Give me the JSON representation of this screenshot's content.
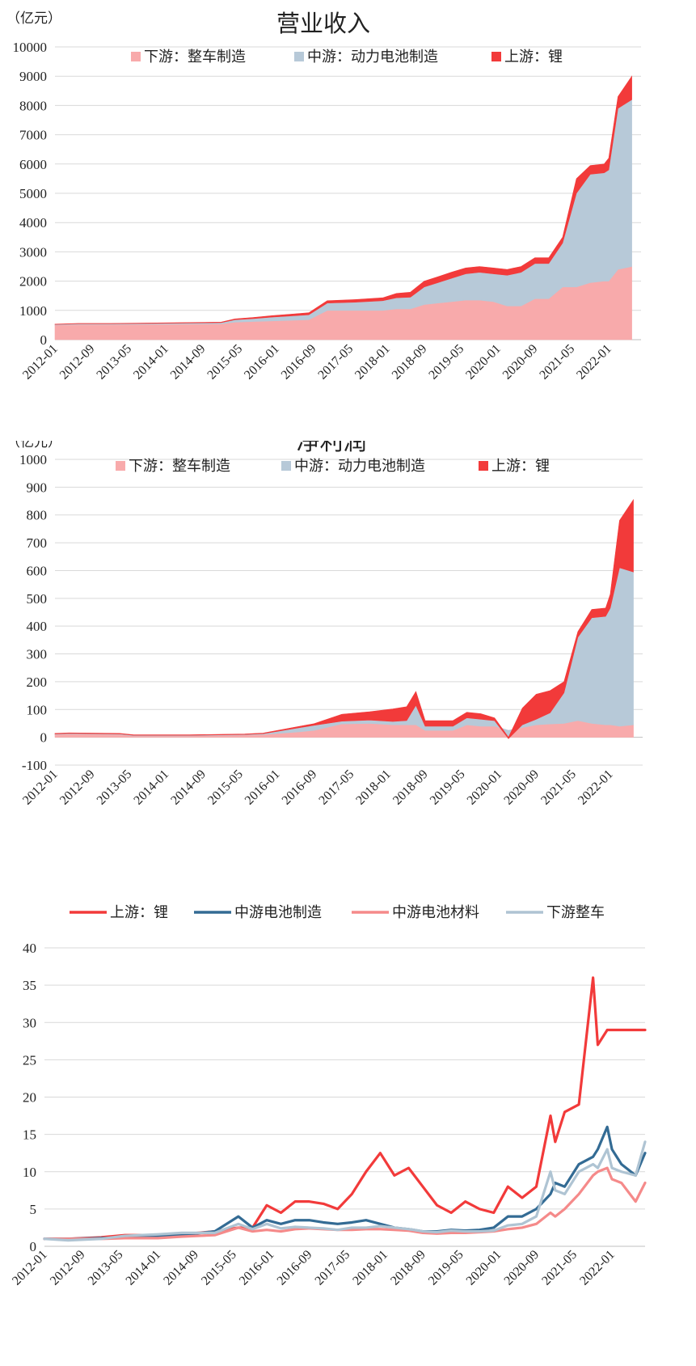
{
  "chart_data": [
    {
      "type": "area",
      "title": "营业收入",
      "unit": "（亿元）",
      "ylim": [
        0,
        10000
      ],
      "yticks": [
        0,
        1000,
        2000,
        3000,
        4000,
        5000,
        6000,
        7000,
        8000,
        9000,
        10000
      ],
      "xticks": [
        "2012-01",
        "2012-09",
        "2013-05",
        "2014-01",
        "2014-09",
        "2015-05",
        "2016-01",
        "2016-09",
        "2017-05",
        "2018-01",
        "2018-09",
        "2019-05",
        "2020-01",
        "2020-09",
        "2021-05",
        "2022-01"
      ],
      "stacked": true,
      "grid": true,
      "legend_position": "top",
      "x": [
        "2012-01",
        "2012-06",
        "2013-01",
        "2014-01",
        "2015-01",
        "2015-04",
        "2015-08",
        "2015-12",
        "2016-04",
        "2016-08",
        "2016-12",
        "2017-06",
        "2017-12",
        "2018-03",
        "2018-06",
        "2018-09",
        "2018-12",
        "2019-03",
        "2019-06",
        "2019-09",
        "2019-12",
        "2020-03",
        "2020-06",
        "2020-09",
        "2020-12",
        "2021-03",
        "2021-06",
        "2021-09",
        "2021-12",
        "2022-01",
        "2022-03",
        "2022-06"
      ],
      "series": [
        {
          "name": "下游：整车制造",
          "color": "#f8aaab",
          "values": [
            500,
            520,
            520,
            530,
            540,
            600,
            620,
            640,
            660,
            680,
            1000,
            1000,
            1000,
            1050,
            1050,
            1200,
            1250,
            1300,
            1350,
            1350,
            1300,
            1150,
            1150,
            1400,
            1400,
            1800,
            1800,
            1950,
            2000,
            2000,
            2400,
            2500
          ]
        },
        {
          "name": "中游：动力电池制造",
          "color": "#b7c9d8",
          "values": [
            20,
            25,
            25,
            30,
            40,
            80,
            100,
            130,
            150,
            170,
            250,
            280,
            330,
            380,
            400,
            600,
            700,
            800,
            900,
            950,
            950,
            1050,
            1150,
            1200,
            1200,
            1500,
            3200,
            3700,
            3700,
            3800,
            5500,
            5700
          ]
        },
        {
          "name": "上游：锂",
          "color": "#f23a3a",
          "values": [
            10,
            10,
            10,
            15,
            20,
            30,
            40,
            50,
            60,
            70,
            80,
            90,
            100,
            150,
            170,
            200,
            200,
            210,
            200,
            200,
            200,
            200,
            200,
            200,
            200,
            200,
            500,
            300,
            300,
            400,
            400,
            800
          ]
        }
      ]
    },
    {
      "type": "area",
      "title": "净利润",
      "unit": "（亿元）",
      "ylim": [
        -100,
        1000
      ],
      "yticks": [
        -100,
        0,
        100,
        200,
        300,
        400,
        500,
        600,
        700,
        800,
        900,
        1000
      ],
      "xticks": [
        "2012-01",
        "2012-09",
        "2013-05",
        "2014-01",
        "2014-09",
        "2015-05",
        "2016-01",
        "2016-09",
        "2017-05",
        "2018-01",
        "2018-09",
        "2019-05",
        "2020-01",
        "2020-09",
        "2021-05",
        "2022-01"
      ],
      "stacked": true,
      "grid": true,
      "legend_position": "top",
      "x": [
        "2012-01",
        "2012-04",
        "2013-03",
        "2013-06",
        "2014-06",
        "2015-06",
        "2015-10",
        "2016-06",
        "2016-09",
        "2017-03",
        "2017-09",
        "2018-02",
        "2018-05",
        "2018-07",
        "2018-09",
        "2019-03",
        "2019-06",
        "2019-09",
        "2019-12",
        "2020-03",
        "2020-06",
        "2020-09",
        "2020-12",
        "2021-03",
        "2021-06",
        "2021-09",
        "2021-12",
        "2022-01",
        "2022-03",
        "2022-06"
      ],
      "series": [
        {
          "name": "下游：整车制造",
          "color": "#f8aaab",
          "values": [
            10,
            12,
            10,
            5,
            5,
            8,
            10,
            20,
            25,
            48,
            50,
            45,
            45,
            45,
            25,
            25,
            45,
            40,
            40,
            25,
            35,
            45,
            48,
            50,
            60,
            50,
            45,
            45,
            40,
            45
          ]
        },
        {
          "name": "中游：动力电池制造",
          "color": "#b7c9d8",
          "values": [
            2,
            2,
            2,
            2,
            2,
            2,
            3,
            15,
            18,
            10,
            12,
            12,
            15,
            70,
            15,
            15,
            25,
            25,
            20,
            -30,
            10,
            20,
            40,
            110,
            300,
            380,
            390,
            420,
            570,
            550
          ]
        },
        {
          "name": "上游：锂",
          "color": "#f23a3a",
          "values": [
            2,
            2,
            2,
            2,
            2,
            2,
            2,
            5,
            6,
            25,
            30,
            45,
            50,
            50,
            20,
            20,
            20,
            20,
            10,
            5,
            60,
            90,
            80,
            40,
            20,
            30,
            30,
            50,
            170,
            260
          ]
        }
      ]
    },
    {
      "type": "line",
      "title": "",
      "ylim": [
        0,
        40
      ],
      "yticks": [
        0,
        5,
        10,
        15,
        20,
        25,
        30,
        35,
        40
      ],
      "xticks": [
        "2012-01",
        "2012-09",
        "2013-05",
        "2014-01",
        "2014-09",
        "2015-05",
        "2016-01",
        "2016-09",
        "2017-05",
        "2018-01",
        "2018-09",
        "2019-05",
        "2020-01",
        "2020-09",
        "2021-05",
        "2022-01"
      ],
      "grid": true,
      "legend_position": "top",
      "x": [
        "2012-01",
        "2012-06",
        "2013-01",
        "2013-06",
        "2014-01",
        "2014-06",
        "2015-01",
        "2015-06",
        "2015-09",
        "2015-12",
        "2016-03",
        "2016-06",
        "2016-09",
        "2016-12",
        "2017-03",
        "2017-06",
        "2017-09",
        "2017-12",
        "2018-03",
        "2018-06",
        "2018-09",
        "2018-12",
        "2019-03",
        "2019-06",
        "2019-09",
        "2019-12",
        "2020-03",
        "2020-06",
        "2020-09",
        "2020-12",
        "2021-01",
        "2021-03",
        "2021-06",
        "2021-09",
        "2021-10",
        "2021-12",
        "2022-01",
        "2022-03",
        "2022-06",
        "2022-08"
      ],
      "series": [
        {
          "name": "上游：锂",
          "color": "#f23a3a",
          "values": [
            1.0,
            1.0,
            1.2,
            1.5,
            1.5,
            1.6,
            2.0,
            2.5,
            2.5,
            5.5,
            4.5,
            6.0,
            6.0,
            5.7,
            5.0,
            7.0,
            10.0,
            12.5,
            9.5,
            10.5,
            8.0,
            5.5,
            4.5,
            6.0,
            5.0,
            4.5,
            8.0,
            6.5,
            8.0,
            17.5,
            14.0,
            18.0,
            19.0,
            36.0,
            27.0,
            29.0,
            29.0,
            29.0,
            29.0,
            29.0
          ]
        },
        {
          "name": "中游电池制造",
          "color": "#336b94",
          "values": [
            1.0,
            1.0,
            1.1,
            1.2,
            1.3,
            1.5,
            2.0,
            4.0,
            2.5,
            3.5,
            3.0,
            3.5,
            3.5,
            3.2,
            3.0,
            3.2,
            3.5,
            3.0,
            2.5,
            2.3,
            2.0,
            2.0,
            2.2,
            2.1,
            2.2,
            2.5,
            4.0,
            4.0,
            5.0,
            7.0,
            8.5,
            8.0,
            11.0,
            12.0,
            13.0,
            16.0,
            13.0,
            11.0,
            9.5,
            12.5
          ]
        },
        {
          "name": "中游电池材料",
          "color": "#f58a8a",
          "values": [
            1.0,
            1.0,
            1.0,
            1.1,
            1.1,
            1.3,
            1.5,
            2.5,
            2.0,
            2.2,
            2.0,
            2.3,
            2.4,
            2.3,
            2.2,
            2.2,
            2.3,
            2.3,
            2.2,
            2.1,
            1.8,
            1.7,
            1.8,
            1.8,
            1.9,
            2.0,
            2.3,
            2.5,
            3.0,
            4.5,
            4.0,
            5.0,
            7.0,
            9.5,
            10.0,
            10.5,
            9.0,
            8.5,
            6.0,
            8.5
          ]
        },
        {
          "name": "下游整车",
          "color": "#afc4d3",
          "values": [
            1.0,
            0.8,
            1.0,
            1.4,
            1.6,
            1.8,
            1.8,
            3.0,
            2.3,
            3.0,
            2.4,
            2.6,
            2.5,
            2.4,
            2.2,
            2.5,
            2.5,
            2.7,
            2.5,
            2.3,
            2.0,
            1.9,
            2.1,
            2.0,
            2.0,
            2.1,
            2.8,
            3.0,
            4.0,
            10.0,
            7.5,
            7.0,
            10.0,
            11.0,
            10.5,
            13.0,
            10.5,
            10.0,
            9.5,
            14.0
          ]
        }
      ]
    }
  ]
}
